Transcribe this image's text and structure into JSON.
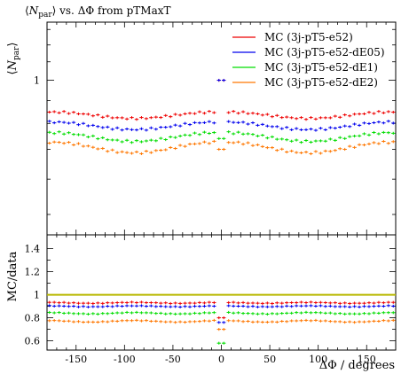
{
  "chart_data": {
    "title": "⟨N_par⟩ vs. ΔΦ from pTMaxT",
    "type": "scatter",
    "ylabel_top": "⟨N_par⟩",
    "ylabel_bottom": "MC/data",
    "xlabel": "ΔΦ / degrees",
    "xlim": [
      -180,
      180
    ],
    "xticks": [
      -150,
      -100,
      -50,
      0,
      50,
      100,
      150
    ],
    "top_ylim": [
      0.45,
      1.35
    ],
    "top_yscale": "log",
    "top_yticks": [
      1
    ],
    "bottom_ylim": [
      0.52,
      1.52
    ],
    "bottom_yticks": [
      0.6,
      0.8,
      1,
      1.2,
      1.4
    ],
    "ratio_reference": 1.0,
    "legend_position": "top-right",
    "series": [
      {
        "name": "MC (3j-pT5-e52)",
        "color": "#ee0000",
        "top_base": 0.83,
        "top_amp": 0.018,
        "top_zero": 1.0,
        "ratio_base": 0.93,
        "ratio_amp": 0.004,
        "ratio_zero": 0.8
      },
      {
        "name": "MC (3j-pT5-e52-dE05)",
        "color": "#0000ee",
        "top_base": 0.785,
        "top_amp": 0.02,
        "top_zero": 1.0,
        "ratio_base": 0.9,
        "ratio_amp": 0.004,
        "ratio_zero": 0.76
      },
      {
        "name": "MC (3j-pT5-e52-dE1)",
        "color": "#00dd00",
        "top_base": 0.74,
        "top_amp": 0.022,
        "top_zero": 0.74,
        "ratio_base": 0.84,
        "ratio_amp": 0.006,
        "ratio_zero": 0.58
      },
      {
        "name": "MC (3j-pT5-e52-dE2)",
        "color": "#ff7700",
        "top_base": 0.7,
        "top_amp": 0.025,
        "top_zero": 0.7,
        "ratio_base": 0.77,
        "ratio_amp": 0.007,
        "ratio_zero": 0.7
      }
    ],
    "reference_color": "#b8b800"
  }
}
